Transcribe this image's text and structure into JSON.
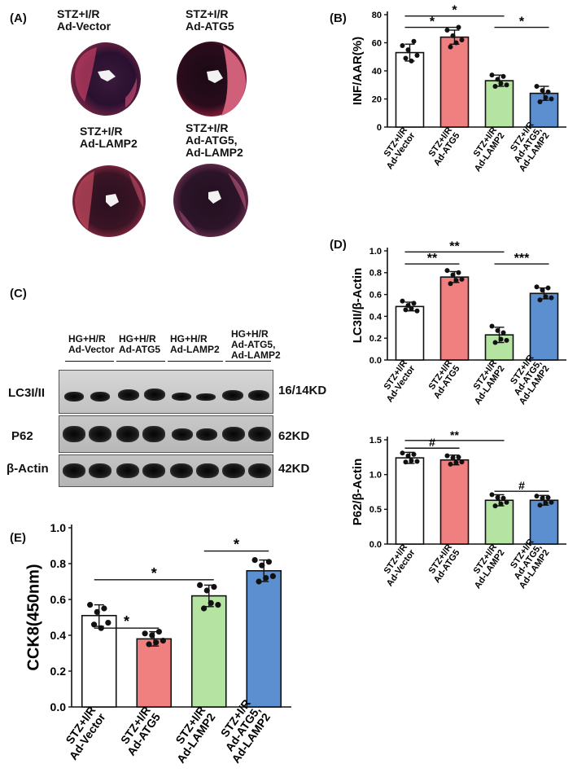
{
  "panels": {
    "A": {
      "letter": "(A)",
      "hearts": [
        {
          "label": "STZ+I/R\nAd-Vector"
        },
        {
          "label": "STZ+I/R\nAd-ATG5"
        },
        {
          "label": "STZ+I/R\nAd-LAMP2"
        },
        {
          "label": "STZ+I/R\nAd-ATG5,\nAd-LAMP2"
        }
      ]
    },
    "B": {
      "letter": "(B)"
    },
    "C": {
      "letter": "(C)",
      "lanes": [
        "HG+H/R\nAd-Vector",
        "HG+H/R\nAd-ATG5",
        "HG+H/R\nAd-LAMP2",
        "HG+H/R\nAd-ATG5,\nAd-LAMP2"
      ],
      "rows": [
        {
          "name": "LC3I/II",
          "size": "16/14KD"
        },
        {
          "name": "P62",
          "size": "62KD"
        },
        {
          "name": "β-Actin",
          "size": "42KD"
        }
      ]
    },
    "D": {
      "letter": "(D)"
    },
    "E": {
      "letter": "(E)"
    }
  },
  "colors": {
    "vector": "#ffffff",
    "atg5": "#f08080",
    "lamp2": "#b5e3a1",
    "both": "#5b8fd0",
    "outline": "#111111"
  },
  "chart_data": [
    {
      "id": "B",
      "type": "bar",
      "categories": [
        "STZ+I/R\nAd-Vector",
        "STZ+I/R\nAd-ATG5",
        "STZ+I/R\nAd-LAMP2",
        "STZ+I/R\nAd-ATG5,\nAd-LAMP2"
      ],
      "values": [
        53,
        64,
        33,
        24
      ],
      "errors": [
        6,
        5,
        4,
        5
      ],
      "points": [
        [
          58,
          49,
          55,
          47,
          61,
          51
        ],
        [
          69,
          57,
          65,
          60,
          71,
          62
        ],
        [
          37,
          29,
          34,
          31,
          36,
          30
        ],
        [
          29,
          18,
          26,
          21,
          25,
          20
        ]
      ],
      "ylabel": "INF/AAR(%)",
      "ylim": [
        0,
        80
      ],
      "yticks": [
        "0",
        "20",
        "40",
        "60",
        "80"
      ],
      "annotations": [
        {
          "from": 0,
          "to": 1,
          "level": 71,
          "text": "*"
        },
        {
          "from": 0,
          "to": 2,
          "level": 79,
          "text": "*"
        },
        {
          "from": 2,
          "to": 3,
          "level": 71,
          "text": "*"
        }
      ]
    },
    {
      "id": "D1",
      "type": "bar",
      "categories": [
        "STZ+I/R\nAd-Vector",
        "STZ+I/R\nAd-ATG5",
        "STZ+I/R\nAd-LAMP2",
        "STZ+I/R\nAd-ATG5,\nAd-LAMP2"
      ],
      "values": [
        0.49,
        0.76,
        0.23,
        0.61
      ],
      "errors": [
        0.04,
        0.05,
        0.07,
        0.05
      ],
      "points": [
        [
          0.54,
          0.46,
          0.5,
          0.47,
          0.52,
          0.45
        ],
        [
          0.82,
          0.7,
          0.78,
          0.73,
          0.8,
          0.74
        ],
        [
          0.31,
          0.16,
          0.27,
          0.19,
          0.25,
          0.18
        ],
        [
          0.67,
          0.55,
          0.64,
          0.58,
          0.66,
          0.57
        ]
      ],
      "ylabel": "LC3II/β-Actin",
      "ylim": [
        0,
        1.0
      ],
      "yticks": [
        "0.0",
        "0.2",
        "0.4",
        "0.6",
        "0.8",
        "1.0"
      ],
      "annotations": [
        {
          "from": 0,
          "to": 1,
          "level": 0.88,
          "text": "**"
        },
        {
          "from": 0,
          "to": 2,
          "level": 0.99,
          "text": "**"
        },
        {
          "from": 2,
          "to": 3,
          "level": 0.88,
          "text": "***"
        }
      ]
    },
    {
      "id": "D2",
      "type": "bar",
      "categories": [
        "STZ+I/R\nAd-Vector",
        "STZ+I/R\nAd-ATG5",
        "STZ+I/R\nAd-LAMP2",
        "STZ+I/R\nAd-ATG5,\nAd-LAMP2"
      ],
      "values": [
        1.24,
        1.21,
        0.63,
        0.63
      ],
      "errors": [
        0.08,
        0.07,
        0.08,
        0.07
      ],
      "points": [
        [
          1.31,
          1.18,
          1.27,
          1.2,
          1.29,
          1.19
        ],
        [
          1.27,
          1.15,
          1.24,
          1.17,
          1.25,
          1.18
        ],
        [
          0.71,
          0.55,
          0.67,
          0.58,
          0.66,
          0.6
        ],
        [
          0.69,
          0.56,
          0.66,
          0.59,
          0.67,
          0.6
        ]
      ],
      "ylabel": "P62/β-Actin",
      "ylim": [
        0,
        1.5
      ],
      "yticks": [
        "0.0",
        "0.5",
        "1.0",
        "1.5"
      ],
      "annotations": [
        {
          "from": 0,
          "to": 1,
          "level": 1.38,
          "text": "#"
        },
        {
          "from": 0,
          "to": 2,
          "level": 1.49,
          "text": "**"
        },
        {
          "from": 2,
          "to": 3,
          "level": 0.76,
          "text": "#"
        }
      ]
    },
    {
      "id": "E",
      "type": "bar",
      "categories": [
        "STZ+I/R\nAd-Vector",
        "STZ+I/R\nAd-ATG5",
        "STZ+I/R\nAd-LAMP2",
        "STZ+I/R\nAd-ATG5,\nAd-LAMP2"
      ],
      "values": [
        0.51,
        0.38,
        0.62,
        0.76
      ],
      "errors": [
        0.06,
        0.04,
        0.06,
        0.06
      ],
      "points": [
        [
          0.57,
          0.46,
          0.53,
          0.44,
          0.55,
          0.47
        ],
        [
          0.41,
          0.35,
          0.4,
          0.36,
          0.42,
          0.37
        ],
        [
          0.68,
          0.55,
          0.65,
          0.58,
          0.67,
          0.57
        ],
        [
          0.82,
          0.7,
          0.79,
          0.72,
          0.81,
          0.73
        ]
      ],
      "ylabel": "CCK8(450nm)",
      "ylim": [
        0,
        1.0
      ],
      "yticks": [
        "0.0",
        "0.2",
        "0.4",
        "0.6",
        "0.8",
        "1.0"
      ],
      "annotations": [
        {
          "from": 0,
          "to": 1,
          "level": 0.44,
          "text": "*"
        },
        {
          "from": 0,
          "to": 2,
          "level": 0.71,
          "text": "*"
        },
        {
          "from": 2,
          "to": 3,
          "level": 0.87,
          "text": "*"
        }
      ]
    }
  ]
}
